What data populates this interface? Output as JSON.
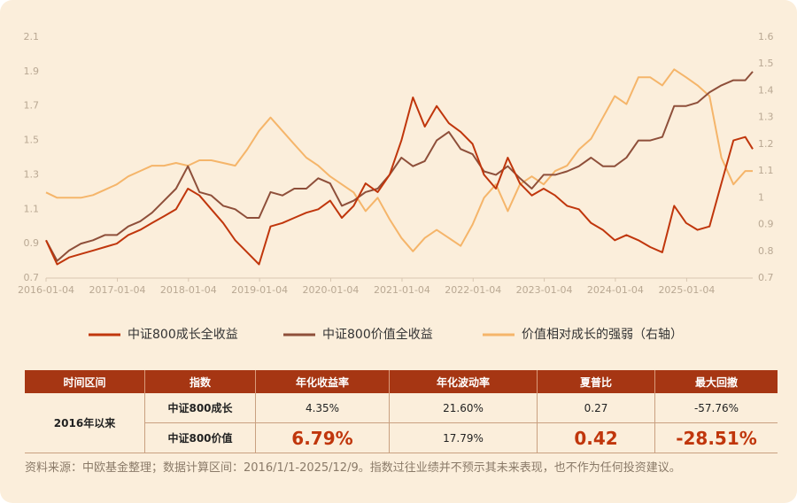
{
  "chart_data": {
    "type": "line",
    "x": [
      "2016-01-04",
      "2016-03-01",
      "2016-05-01",
      "2016-07-01",
      "2016-09-01",
      "2016-11-01",
      "2017-01-01",
      "2017-03-01",
      "2017-05-01",
      "2017-07-01",
      "2017-09-01",
      "2017-11-01",
      "2018-01-01",
      "2018-03-01",
      "2018-05-01",
      "2018-07-01",
      "2018-09-01",
      "2018-11-01",
      "2019-01-01",
      "2019-03-01",
      "2019-05-01",
      "2019-07-01",
      "2019-09-01",
      "2019-11-01",
      "2020-01-01",
      "2020-03-01",
      "2020-05-01",
      "2020-07-01",
      "2020-09-01",
      "2020-11-01",
      "2021-01-01",
      "2021-03-01",
      "2021-05-01",
      "2021-07-01",
      "2021-09-01",
      "2021-11-01",
      "2022-01-01",
      "2022-03-01",
      "2022-05-01",
      "2022-07-01",
      "2022-09-01",
      "2022-11-01",
      "2023-01-01",
      "2023-03-01",
      "2023-05-01",
      "2023-07-01",
      "2023-09-01",
      "2023-11-01",
      "2024-01-01",
      "2024-03-01",
      "2024-05-01",
      "2024-07-01",
      "2024-09-01",
      "2024-11-01",
      "2025-01-01",
      "2025-03-01",
      "2025-05-01",
      "2025-07-01",
      "2025-09-01",
      "2025-11-01",
      "2025-12-09"
    ],
    "xlim": [
      "2016-01-04",
      "2025-12-09"
    ],
    "xticks": [
      "2016-01-04",
      "2017-01-04",
      "2018-01-04",
      "2019-01-04",
      "2020-01-04",
      "2021-01-04",
      "2022-01-04",
      "2023-01-04",
      "2024-01-04",
      "2025-01-04"
    ],
    "ylim": [
      0.7,
      2.1
    ],
    "yticks": [
      0.7,
      0.9,
      1.1,
      1.3,
      1.5,
      1.7,
      1.9,
      2.1
    ],
    "y2lim": [
      0.7,
      1.6
    ],
    "y2ticks": [
      0.7,
      0.8,
      0.9,
      1,
      1.1,
      1.2,
      1.3,
      1.4,
      1.5,
      1.6
    ],
    "legend": "bottom",
    "series": [
      {
        "name": "中证800成长全收益",
        "color": "#c0360c",
        "values": [
          0.92,
          0.78,
          0.82,
          0.84,
          0.86,
          0.88,
          0.9,
          0.95,
          0.98,
          1.02,
          1.06,
          1.1,
          1.22,
          1.18,
          1.1,
          1.02,
          0.92,
          0.85,
          0.78,
          1.0,
          1.02,
          1.05,
          1.08,
          1.1,
          1.15,
          1.05,
          1.12,
          1.25,
          1.2,
          1.3,
          1.5,
          1.75,
          1.58,
          1.7,
          1.6,
          1.55,
          1.48,
          1.3,
          1.22,
          1.4,
          1.25,
          1.18,
          1.22,
          1.18,
          1.12,
          1.1,
          1.02,
          0.98,
          0.92,
          0.95,
          0.92,
          0.88,
          0.85,
          1.12,
          1.02,
          0.98,
          1.0,
          1.25,
          1.5,
          1.52,
          1.45
        ]
      },
      {
        "name": "中证800价值全收益",
        "color": "#8e4f3a",
        "values": [
          0.92,
          0.8,
          0.86,
          0.9,
          0.92,
          0.95,
          0.95,
          1.0,
          1.03,
          1.08,
          1.15,
          1.22,
          1.35,
          1.2,
          1.18,
          1.12,
          1.1,
          1.05,
          1.05,
          1.2,
          1.18,
          1.22,
          1.22,
          1.28,
          1.25,
          1.12,
          1.15,
          1.2,
          1.22,
          1.3,
          1.4,
          1.35,
          1.38,
          1.5,
          1.55,
          1.45,
          1.42,
          1.32,
          1.3,
          1.35,
          1.28,
          1.22,
          1.3,
          1.3,
          1.32,
          1.35,
          1.4,
          1.35,
          1.35,
          1.4,
          1.5,
          1.5,
          1.52,
          1.7,
          1.7,
          1.72,
          1.78,
          1.82,
          1.85,
          1.85,
          1.9
        ]
      },
      {
        "name": "价值相对成长的强弱（右轴）",
        "color": "#f5b56a",
        "axis": "y2",
        "values": [
          1.02,
          1.0,
          1.0,
          1.0,
          1.01,
          1.03,
          1.05,
          1.08,
          1.1,
          1.12,
          1.12,
          1.13,
          1.12,
          1.14,
          1.14,
          1.13,
          1.12,
          1.18,
          1.25,
          1.3,
          1.25,
          1.2,
          1.15,
          1.12,
          1.08,
          1.05,
          1.02,
          0.95,
          1.0,
          0.92,
          0.85,
          0.8,
          0.85,
          0.88,
          0.85,
          0.82,
          0.9,
          1.0,
          1.05,
          0.95,
          1.05,
          1.08,
          1.05,
          1.1,
          1.12,
          1.18,
          1.22,
          1.3,
          1.38,
          1.35,
          1.45,
          1.45,
          1.42,
          1.48,
          1.45,
          1.42,
          1.38,
          1.15,
          1.05,
          1.1,
          1.1
        ]
      }
    ]
  },
  "table": {
    "columns": [
      "时间区间",
      "指数",
      "年化收益率",
      "年化波动率",
      "夏普比",
      "最大回撤"
    ],
    "period": "2016年以来",
    "rows": [
      [
        "中证800成长",
        "4.35%",
        "21.60%",
        "0.27",
        "-57.76%"
      ],
      [
        "中证800价值",
        "6.79%",
        "17.79%",
        "0.42",
        "-28.51%"
      ]
    ]
  },
  "footnote": "资料来源：中欧基金整理；数据计算区间：2016/1/1-2025/12/9。指数过往业绩并不预示其未来表现，也不作为任何投资建议。"
}
